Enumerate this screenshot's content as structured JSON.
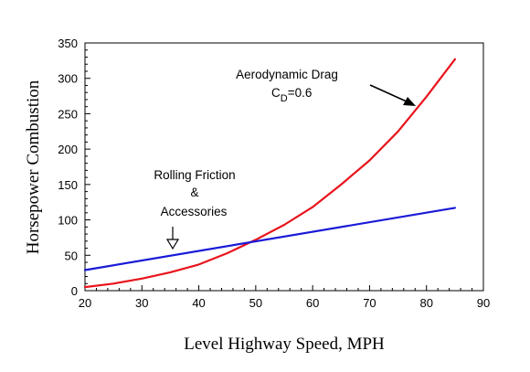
{
  "chart_data": {
    "type": "line",
    "title": "",
    "xlabel": "Level Highway Speed, MPH",
    "ylabel": "Horsepower Combustion",
    "xlim": [
      20,
      90
    ],
    "ylim": [
      0,
      350
    ],
    "xticks": [
      20,
      30,
      40,
      50,
      60,
      70,
      80,
      90
    ],
    "yticks": [
      0,
      50,
      100,
      150,
      200,
      250,
      300,
      350
    ],
    "grid": false,
    "legend": "none",
    "series": [
      {
        "name": "Aerodynamic Drag",
        "color": "#e8141c",
        "x": [
          20,
          25,
          30,
          35,
          40,
          45,
          50,
          55,
          60,
          65,
          70,
          75,
          80,
          85
        ],
        "y": [
          5,
          10,
          17,
          26,
          37,
          53,
          72,
          93,
          118,
          150,
          184,
          225,
          274,
          327
        ]
      },
      {
        "name": "Rolling Friction & Accessories",
        "color": "#1a1ad8",
        "x": [
          20,
          85
        ],
        "y": [
          29,
          117
        ]
      }
    ],
    "annotations": {
      "drag_line1": "Aerodynamic Drag",
      "drag_cd_symbol": "C",
      "drag_cd_subscript": "D",
      "drag_cd_value": "=0.6",
      "rolling_line1": "Rolling Friction",
      "rolling_line2": "&",
      "rolling_line3": "Accessories"
    }
  }
}
